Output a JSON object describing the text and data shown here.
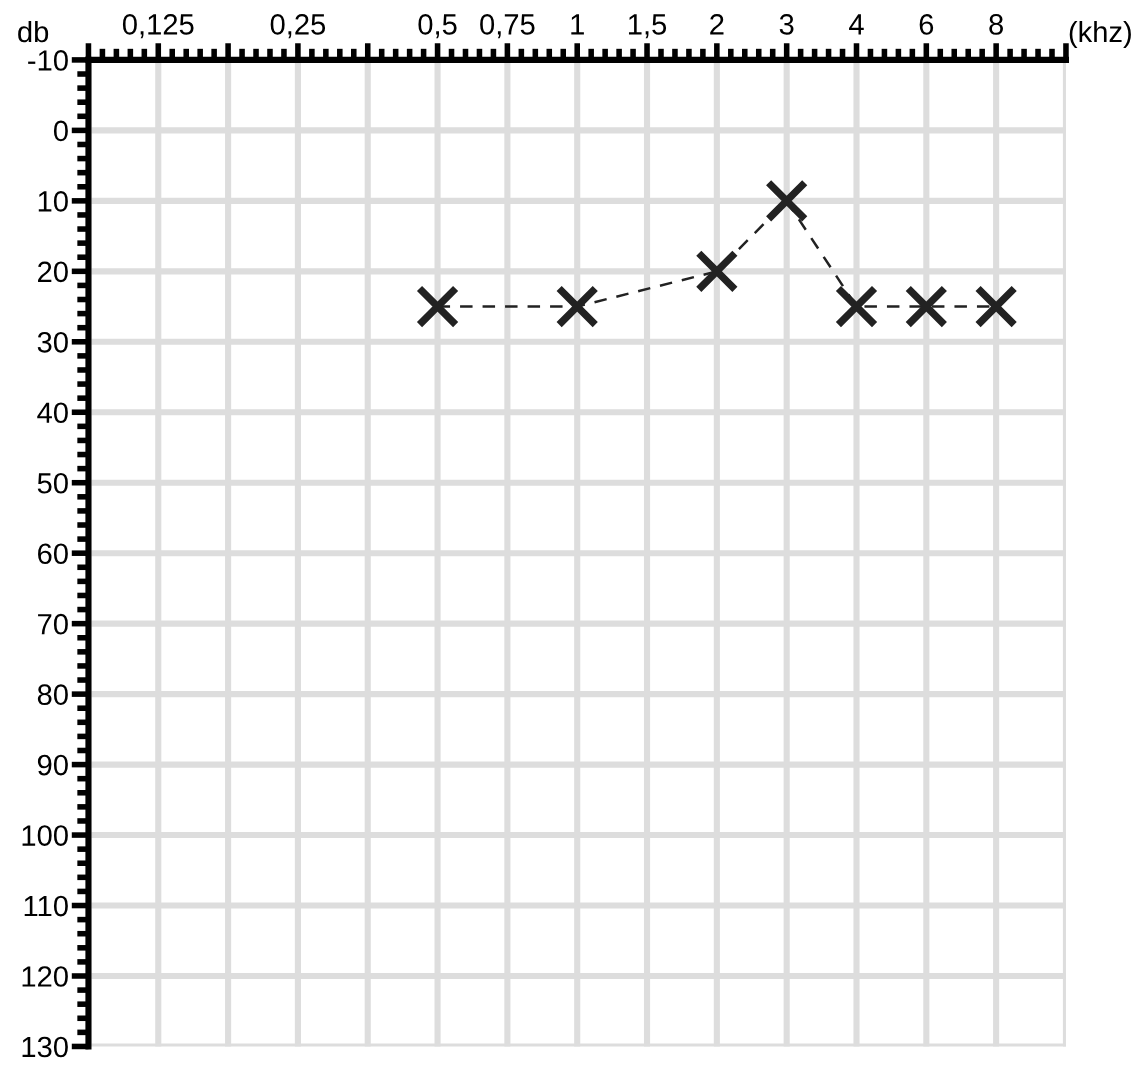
{
  "chart_data": {
    "type": "line",
    "xlabel": "(khz)",
    "ylabel": "db",
    "categories": [
      null,
      "0,125",
      null,
      "0,25",
      null,
      "0,5",
      "0,75",
      "1",
      "1,5",
      "2",
      "3",
      "4",
      "6",
      "8",
      null
    ],
    "series": [
      {
        "color": "#222222",
        "values": [
          null,
          null,
          null,
          null,
          null,
          25,
          null,
          25,
          null,
          20,
          10,
          25,
          25,
          25,
          null
        ]
      }
    ],
    "ylim": [
      130,
      -10
    ],
    "yticks": [
      -10,
      0,
      10,
      20,
      30,
      40,
      50,
      60,
      70,
      80,
      90,
      100,
      110,
      120,
      130
    ],
    "grid": true,
    "marker": "cross",
    "line_style": "dashed"
  }
}
